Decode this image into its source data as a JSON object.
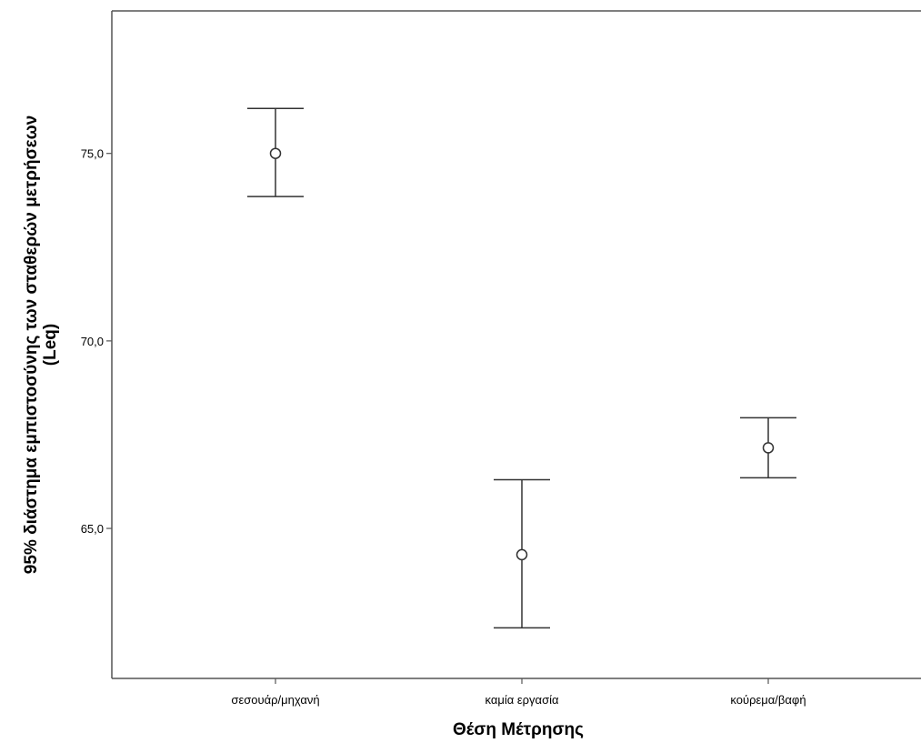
{
  "chart_data": {
    "type": "errorbar",
    "title": "",
    "xlabel": "Θέση Μέτρησης",
    "ylabel_lines": [
      "95% διάστημα εμπιστοσύνης των σταθερών μετρήσεων",
      "(Leq)"
    ],
    "ylim": [
      61.0,
      78.8
    ],
    "yticks": [
      65.0,
      70.0,
      75.0
    ],
    "ytick_labels": [
      "65,0",
      "70,0",
      "75,0"
    ],
    "grid": false,
    "categories": [
      "σεσουάρ/μηχανή",
      "καμία εργασία",
      "κούρεμα/βαφή"
    ],
    "series": [
      {
        "mean": [
          75.0,
          64.3,
          67.15
        ],
        "lower": [
          73.85,
          62.35,
          66.35
        ],
        "upper": [
          76.2,
          66.3,
          67.95
        ]
      }
    ]
  }
}
